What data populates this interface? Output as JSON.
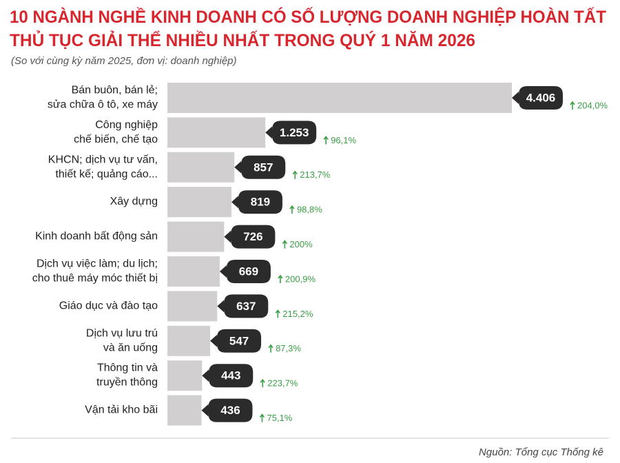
{
  "chart_data": {
    "type": "bar",
    "orientation": "horizontal",
    "title": "10 NGÀNH NGHỀ KINH DOANH CÓ SỐ LƯỢNG DOANH NGHIỆP HOÀN TẤT\nTHỦ TỤC GIẢI THỂ NHIỀU NHẤT TRONG QUÝ 1 NĂM 2026",
    "subtitle": "(So với cùng kỳ năm 2025, đơn vị: doanh nghiệp)",
    "categories": [
      "Bán buôn, bán lẻ;\nsửa chữa ô tô, xe máy",
      "Công nghiệp\nchế biến, chế tạo",
      "KHCN; dịch vụ tư vấn,\nthiết kế; quảng cáo...",
      "Xây dựng",
      "Kinh doanh bất động sản",
      "Dịch vụ việc làm; du lịch;\ncho thuê máy móc thiết bị",
      "Giáo dục và đào tạo",
      "Dịch vụ lưu trú\nvà ăn uống",
      "Thông tin và\ntruyền thông",
      "Vận tải kho bãi"
    ],
    "values": [
      4406,
      1253,
      857,
      819,
      726,
      669,
      637,
      547,
      443,
      436
    ],
    "value_labels": [
      "4.406",
      "1.253",
      "857",
      "819",
      "726",
      "669",
      "637",
      "547",
      "443",
      "436"
    ],
    "growth_labels": [
      "204,0%",
      "96,1%",
      "213,7%",
      "98,8%",
      "200%",
      "200,9%",
      "215,2%",
      "87,3%",
      "223,7%",
      "75,1%"
    ],
    "color": "#d1cfd0",
    "label_color": "#2b2b2b",
    "growth_color": "#3a9e45",
    "xlim": [
      0,
      4406
    ],
    "source": "Nguồn: Tổng cục Thống kê"
  }
}
